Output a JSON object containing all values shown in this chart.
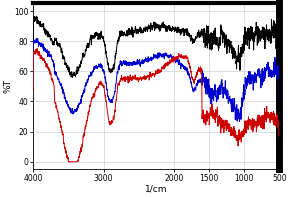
{
  "title": "",
  "xlabel": "1/cm",
  "ylabel": "%T",
  "xlim": [
    4000,
    500
  ],
  "ylim": [
    -5,
    105
  ],
  "xticks": [
    4000,
    3000,
    2000,
    1500,
    1000,
    500
  ],
  "yticks": [
    0,
    20,
    40,
    60,
    80,
    100
  ],
  "grid_color": "#c8d0d8",
  "bg_color": "#ffffff",
  "line_colors": [
    "#000000",
    "#0000cc",
    "#cc0000"
  ],
  "figsize": [
    2.9,
    1.97
  ],
  "dpi": 100
}
